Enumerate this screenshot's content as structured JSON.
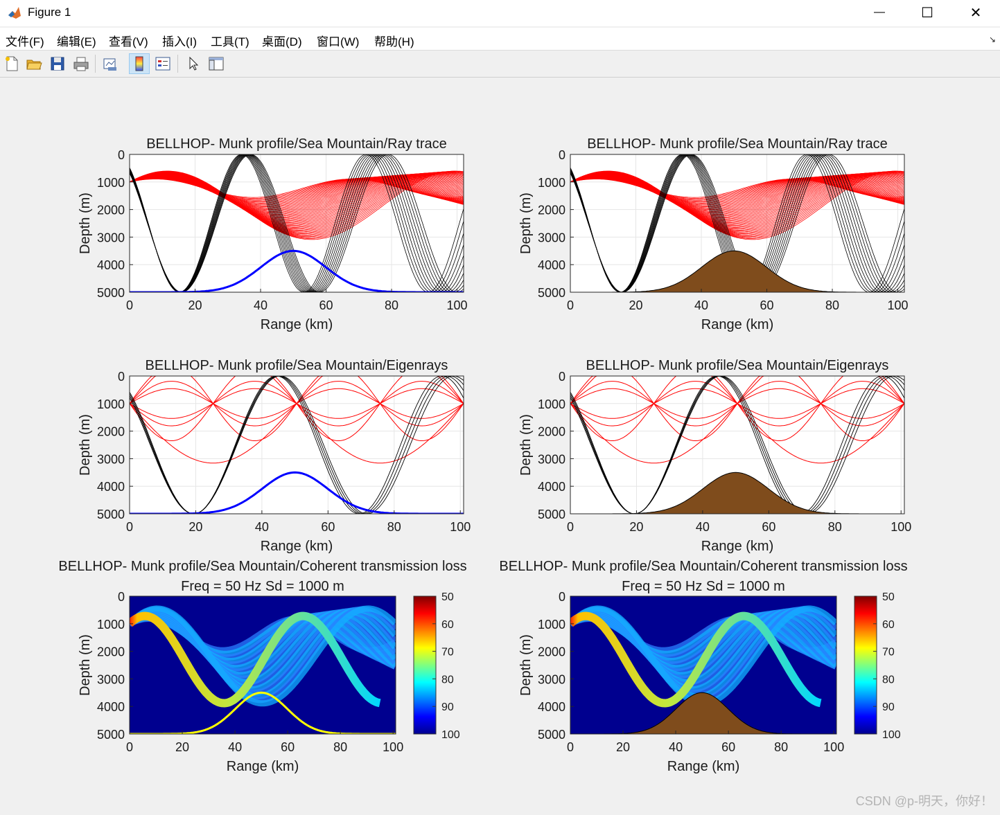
{
  "window": {
    "title": "Figure 1",
    "minimize": "—",
    "maximize": "☐",
    "close": "✕"
  },
  "menu": [
    "文件(F)",
    "编辑(E)",
    "查看(V)",
    "插入(I)",
    "工具(T)",
    "桌面(D)",
    "窗口(W)",
    "帮助(H)"
  ],
  "toolbar": [
    {
      "name": "new-figure-icon"
    },
    {
      "name": "open-file-icon"
    },
    {
      "name": "save-icon"
    },
    {
      "name": "print-icon"
    },
    {
      "name": "link-plot-icon"
    },
    {
      "name": "colorbar-icon"
    },
    {
      "name": "legend-icon"
    },
    {
      "name": "pointer-icon"
    },
    {
      "name": "property-editor-icon"
    }
  ],
  "axes_labels": {
    "x": "Range (km)",
    "y": "Depth (m)"
  },
  "colors": {
    "ray": "#ff0000",
    "bottom_ray": "#000000",
    "seamount": "#7f4c1c",
    "bathy_line": "#0000ff",
    "bathy_tl": "#ffff00",
    "tl_bg": "#00008f"
  },
  "colorbar": {
    "ticks": [
      "50",
      "60",
      "70",
      "80",
      "90",
      "100"
    ],
    "range": [
      50,
      100
    ]
  },
  "watermark": "CSDN @p-明天，你好！",
  "chart_data": [
    {
      "type": "line",
      "title": "BELLHOP- Munk profile/Sea Mountain/Ray trace",
      "xlabel": "Range (km)",
      "ylabel": "Depth (m)",
      "xlim": [
        0,
        102
      ],
      "ylim": [
        5000,
        0
      ],
      "xticks": [
        "0",
        "20",
        "40",
        "60",
        "80",
        "100"
      ],
      "yticks": [
        "0",
        "1000",
        "2000",
        "3000",
        "4000",
        "5000"
      ],
      "bathymetry": "line",
      "bathy_peak_depth": 3500,
      "bathy_peak_range_km": 50,
      "source_depth_m": 1000
    },
    {
      "type": "line",
      "title": "BELLHOP- Munk profile/Sea Mountain/Ray trace",
      "xlabel": "Range (km)",
      "ylabel": "Depth (m)",
      "xlim": [
        0,
        102
      ],
      "ylim": [
        5000,
        0
      ],
      "xticks": [
        "0",
        "20",
        "40",
        "60",
        "80",
        "100"
      ],
      "yticks": [
        "0",
        "1000",
        "2000",
        "3000",
        "4000",
        "5000"
      ],
      "bathymetry": "fill",
      "bathy_peak_depth": 3500,
      "bathy_peak_range_km": 50,
      "source_depth_m": 1000
    },
    {
      "type": "line",
      "title": "BELLHOP- Munk profile/Sea Mountain/Eigenrays",
      "xlabel": "Range (km)",
      "ylabel": "Depth (m)",
      "xlim": [
        0,
        101
      ],
      "ylim": [
        5000,
        0
      ],
      "xticks": [
        "0",
        "20",
        "40",
        "60",
        "80",
        "100"
      ],
      "yticks": [
        "0",
        "1000",
        "2000",
        "3000",
        "4000",
        "5000"
      ],
      "bathymetry": "line",
      "bathy_peak_depth": 3500,
      "bathy_peak_range_km": 50,
      "receiver_range_km": 101,
      "receiver_depth_m": 1000
    },
    {
      "type": "line",
      "title": "BELLHOP- Munk profile/Sea Mountain/Eigenrays",
      "xlabel": "Range (km)",
      "ylabel": "Depth (m)",
      "xlim": [
        0,
        101
      ],
      "ylim": [
        5000,
        0
      ],
      "xticks": [
        "0",
        "20",
        "40",
        "60",
        "80",
        "100"
      ],
      "yticks": [
        "0",
        "1000",
        "2000",
        "3000",
        "4000",
        "5000"
      ],
      "bathymetry": "fill",
      "bathy_peak_depth": 3500,
      "bathy_peak_range_km": 50,
      "receiver_range_km": 101,
      "receiver_depth_m": 1000
    },
    {
      "type": "heatmap",
      "title": "BELLHOP- Munk profile/Sea Mountain/Coherent transmission loss",
      "subtitle": "Freq = 50 Hz    Sd = 1000 m",
      "xlabel": "Range (km)",
      "ylabel": "Depth (m)",
      "xlim": [
        0,
        101
      ],
      "ylim": [
        5000,
        0
      ],
      "xticks": [
        "0",
        "20",
        "40",
        "60",
        "80",
        "100"
      ],
      "yticks": [
        "0",
        "1000",
        "2000",
        "3000",
        "4000",
        "5000"
      ],
      "clim": [
        50,
        100
      ],
      "bathymetry": "line",
      "bathy_peak_depth": 3500,
      "bathy_peak_range_km": 50
    },
    {
      "type": "heatmap",
      "title": "BELLHOP- Munk profile/Sea Mountain/Coherent transmission loss",
      "subtitle": "Freq = 50 Hz    Sd = 1000 m",
      "xlabel": "Range (km)",
      "ylabel": "Depth (m)",
      "xlim": [
        0,
        101
      ],
      "ylim": [
        5000,
        0
      ],
      "xticks": [
        "0",
        "20",
        "40",
        "60",
        "80",
        "100"
      ],
      "yticks": [
        "0",
        "1000",
        "2000",
        "3000",
        "4000",
        "5000"
      ],
      "clim": [
        50,
        100
      ],
      "bathymetry": "fill",
      "bathy_peak_depth": 3500,
      "bathy_peak_range_km": 50
    }
  ]
}
